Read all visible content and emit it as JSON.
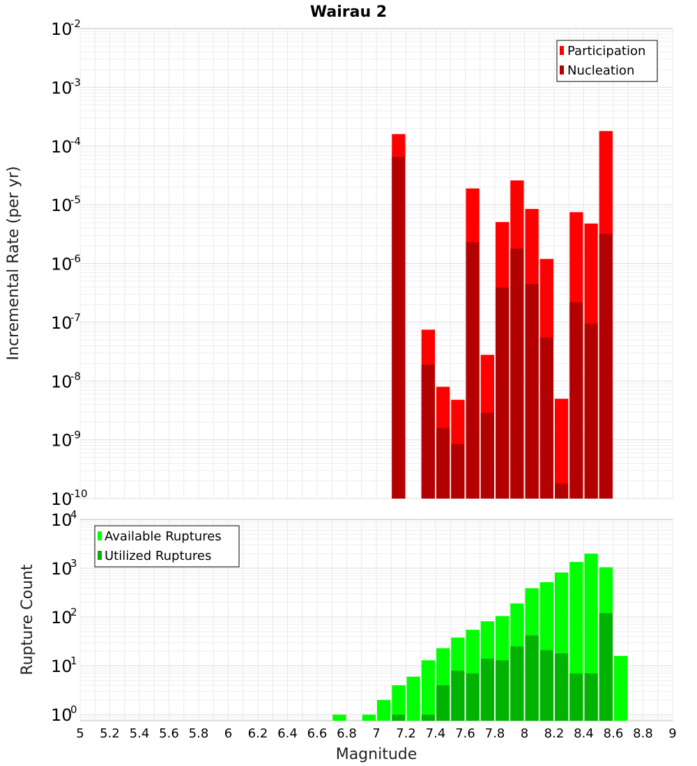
{
  "chart_data": [
    {
      "type": "bar",
      "title": "Wairau 2",
      "xlabel": "",
      "ylabel": "Incremental Rate (per yr)",
      "yscale": "log",
      "ylim": [
        1e-10,
        0.01
      ],
      "y_ticks": [
        {
          "base": "10",
          "exp": "-2"
        },
        {
          "base": "10",
          "exp": "-3"
        },
        {
          "base": "10",
          "exp": "-4"
        },
        {
          "base": "10",
          "exp": "-5"
        },
        {
          "base": "10",
          "exp": "-6"
        },
        {
          "base": "10",
          "exp": "-7"
        },
        {
          "base": "10",
          "exp": "-8"
        },
        {
          "base": "10",
          "exp": "-9"
        },
        {
          "base": "10",
          "exp": "-10"
        }
      ],
      "xlim": [
        5,
        9
      ],
      "bar_width": 0.1,
      "legend_position": "top-right",
      "series": [
        {
          "name": "Participation",
          "color": "#ff0000",
          "points": [
            {
              "x": 7.15,
              "y": 0.00016
            },
            {
              "x": 7.35,
              "y": 7.5e-08
            },
            {
              "x": 7.45,
              "y": 8e-09
            },
            {
              "x": 7.55,
              "y": 4.8e-09
            },
            {
              "x": 7.65,
              "y": 1.9e-05
            },
            {
              "x": 7.75,
              "y": 2.8e-08
            },
            {
              "x": 7.85,
              "y": 5.1e-06
            },
            {
              "x": 7.95,
              "y": 2.6e-05
            },
            {
              "x": 8.05,
              "y": 8.5e-06
            },
            {
              "x": 8.15,
              "y": 1.2e-06
            },
            {
              "x": 8.25,
              "y": 5e-09
            },
            {
              "x": 8.35,
              "y": 7.5e-06
            },
            {
              "x": 8.45,
              "y": 4.8e-06
            },
            {
              "x": 8.55,
              "y": 0.00018
            }
          ]
        },
        {
          "name": "Nucleation",
          "color": "#b30000",
          "points": [
            {
              "x": 7.15,
              "y": 6.5e-05
            },
            {
              "x": 7.35,
              "y": 1.9e-08
            },
            {
              "x": 7.45,
              "y": 1.6e-09
            },
            {
              "x": 7.55,
              "y": 8.5e-10
            },
            {
              "x": 7.65,
              "y": 2.3e-06
            },
            {
              "x": 7.75,
              "y": 2.9e-09
            },
            {
              "x": 7.85,
              "y": 3.9e-07
            },
            {
              "x": 7.95,
              "y": 1.8e-06
            },
            {
              "x": 8.05,
              "y": 4.5e-07
            },
            {
              "x": 8.15,
              "y": 5.5e-08
            },
            {
              "x": 8.25,
              "y": 1.8e-10
            },
            {
              "x": 8.35,
              "y": 2.2e-07
            },
            {
              "x": 8.45,
              "y": 9.5e-08
            },
            {
              "x": 8.55,
              "y": 3.2e-06
            }
          ]
        }
      ]
    },
    {
      "type": "bar",
      "title": "",
      "xlabel": "Magnitude",
      "ylabel": "Rupture Count",
      "yscale": "log",
      "ylim": [
        0.75,
        10000
      ],
      "y_ticks": [
        {
          "value": 10000,
          "base": "10",
          "exp": "4"
        },
        {
          "value": 1000,
          "base": "10",
          "exp": "3"
        },
        {
          "value": 100,
          "base": "10",
          "exp": "2"
        },
        {
          "value": 10,
          "base": "10",
          "exp": "1"
        },
        {
          "value": 1,
          "base": "10",
          "exp": "0"
        }
      ],
      "xlim": [
        5,
        9
      ],
      "x_ticks": [
        "5",
        "5.2",
        "5.4",
        "5.6",
        "5.8",
        "6",
        "6.2",
        "6.4",
        "6.6",
        "6.8",
        "7",
        "7.2",
        "7.4",
        "7.6",
        "7.8",
        "8",
        "8.2",
        "8.4",
        "8.6",
        "8.8",
        "9"
      ],
      "bar_width": 0.1,
      "legend_position": "top-left",
      "series": [
        {
          "name": "Available Ruptures",
          "color": "#00ff00",
          "points": [
            {
              "x": 6.75,
              "y": 1
            },
            {
              "x": 6.95,
              "y": 1
            },
            {
              "x": 7.05,
              "y": 2
            },
            {
              "x": 7.15,
              "y": 4
            },
            {
              "x": 7.25,
              "y": 6
            },
            {
              "x": 7.35,
              "y": 13
            },
            {
              "x": 7.45,
              "y": 23
            },
            {
              "x": 7.55,
              "y": 38
            },
            {
              "x": 7.65,
              "y": 55
            },
            {
              "x": 7.75,
              "y": 82
            },
            {
              "x": 7.85,
              "y": 105
            },
            {
              "x": 7.95,
              "y": 190
            },
            {
              "x": 8.05,
              "y": 390
            },
            {
              "x": 8.15,
              "y": 520
            },
            {
              "x": 8.25,
              "y": 820
            },
            {
              "x": 8.35,
              "y": 1350
            },
            {
              "x": 8.45,
              "y": 2000
            },
            {
              "x": 8.55,
              "y": 1050
            },
            {
              "x": 8.65,
              "y": 16
            }
          ]
        },
        {
          "name": "Utilized Ruptures",
          "color": "#00b300",
          "points": [
            {
              "x": 7.15,
              "y": 1
            },
            {
              "x": 7.35,
              "y": 1
            },
            {
              "x": 7.45,
              "y": 4
            },
            {
              "x": 7.55,
              "y": 8
            },
            {
              "x": 7.65,
              "y": 7
            },
            {
              "x": 7.75,
              "y": 14
            },
            {
              "x": 7.85,
              "y": 13
            },
            {
              "x": 7.95,
              "y": 25
            },
            {
              "x": 8.05,
              "y": 42
            },
            {
              "x": 8.15,
              "y": 21
            },
            {
              "x": 8.25,
              "y": 18
            },
            {
              "x": 8.35,
              "y": 7
            },
            {
              "x": 8.45,
              "y": 7
            },
            {
              "x": 8.55,
              "y": 120
            }
          ]
        }
      ]
    }
  ]
}
